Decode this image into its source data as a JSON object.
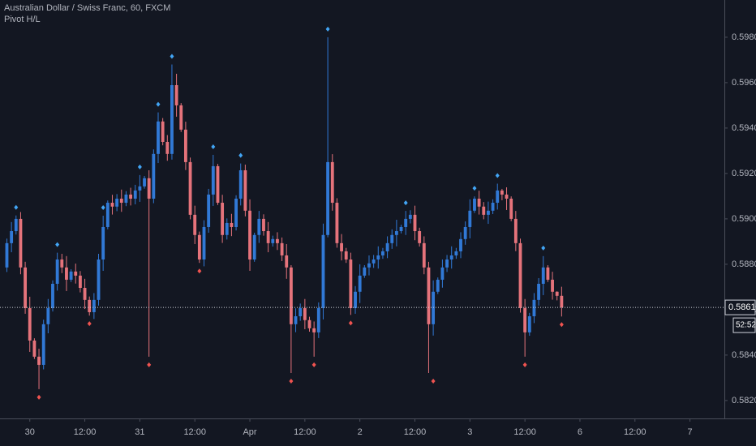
{
  "chart_data": {
    "type": "candlestick",
    "title": "Australian Dollar / Swiss Franc, 60, FXCM",
    "subtitle": "Pivot H/L",
    "categories": [
      null,
      null,
      null,
      null,
      null,
      null,
      "30",
      null,
      null,
      null,
      null,
      null,
      null,
      null,
      null,
      null,
      null,
      null,
      "12:00",
      null,
      null,
      null,
      null,
      null,
      null,
      null,
      null,
      null,
      null,
      null,
      "31",
      null,
      null,
      null,
      null,
      null,
      null,
      null,
      null,
      null,
      null,
      null,
      "12:00",
      null,
      null,
      null,
      null,
      null,
      null,
      null,
      null,
      null,
      null,
      null,
      "Apr",
      null,
      null,
      null,
      null,
      null,
      null,
      null,
      null,
      null,
      null,
      null,
      "12:00",
      null,
      null,
      null,
      null,
      null,
      null,
      null,
      null,
      null,
      null,
      null,
      "2",
      null,
      null,
      null,
      null,
      null,
      null,
      null,
      null,
      null,
      null,
      null,
      "12:00",
      null,
      null,
      null,
      null,
      null,
      null,
      null,
      null,
      null,
      null,
      null,
      "3",
      null,
      null,
      null,
      null,
      null,
      null,
      null,
      null,
      null,
      null,
      null,
      "12:00",
      null,
      null,
      null,
      null,
      null,
      null,
      null,
      null,
      null,
      null,
      null,
      "6",
      null,
      null,
      null,
      null,
      null,
      null,
      null,
      null,
      null,
      null,
      null,
      "12:00",
      null,
      null,
      null,
      null,
      null,
      null,
      null,
      null,
      null,
      null,
      null,
      "7",
      null,
      null,
      null,
      null,
      null,
      null,
      null
    ],
    "open": [
      null,
      0.58786,
      0.58893,
      0.58946,
      0.59,
      0.58786,
      0.58607,
      0.58464,
      0.58393,
      0.58357,
      0.58536,
      0.58607,
      0.58714,
      0.58821,
      0.58786,
      0.58732,
      0.58768,
      0.5875,
      0.58696,
      0.58643,
      0.58589,
      0.58643,
      0.58821,
      0.58964,
      0.59071,
      0.59054,
      0.59089,
      0.59071,
      0.59107,
      0.59089,
      0.59125,
      0.59143,
      0.59179,
      0.59089,
      0.59286,
      0.59429,
      0.59339,
      0.59286,
      0.59589,
      0.595,
      0.59393,
      0.5925,
      0.59018,
      0.58929,
      0.58821,
      0.58964,
      0.59107,
      0.59232,
      0.59071,
      0.58929,
      0.58982,
      0.58964,
      0.59089,
      0.59214,
      0.59036,
      0.58821,
      0.58929,
      0.59,
      0.58946,
      0.58893,
      0.58911,
      0.58893,
      0.58839,
      0.58786,
      0.58536,
      0.58571,
      0.58607,
      0.58554,
      0.58518,
      0.585,
      0.58607,
      0.58929,
      0.5925,
      0.59071,
      0.58893,
      0.58857,
      0.58821,
      0.58607,
      0.58679,
      0.5875,
      0.58786,
      0.58804,
      0.58821,
      0.58839,
      0.58857,
      0.58893,
      0.58929,
      0.58946,
      0.58964,
      0.59,
      0.59018,
      0.58946,
      0.58893,
      0.58786,
      0.58536,
      0.58679,
      0.58732,
      0.58786,
      0.58821,
      0.58839,
      0.58857,
      0.58911,
      0.58964,
      0.59036,
      0.59089,
      0.59054,
      0.59018,
      0.59036,
      0.59071,
      0.59125,
      0.59107,
      0.59089,
      0.59,
      0.58893,
      0.58607,
      0.585,
      0.58571,
      0.58643,
      0.58714,
      0.58786,
      0.58732,
      0.58679,
      0.58661,
      null,
      null,
      null,
      null,
      null,
      null,
      null,
      null,
      null,
      null,
      null,
      null,
      null,
      null,
      null,
      null,
      null,
      null,
      null,
      null,
      null,
      null,
      null,
      null,
      null,
      null,
      null,
      null,
      null,
      null,
      null,
      null,
      null,
      null,
      null
    ],
    "high": [
      null,
      0.58913,
      0.58986,
      0.59015,
      0.5903,
      0.58811,
      0.58657,
      0.58474,
      0.58428,
      0.58556,
      0.58647,
      0.58729,
      0.58851,
      0.58846,
      0.58836,
      0.58778,
      0.58803,
      0.5877,
      0.58736,
      0.58658,
      0.58673,
      0.58846,
      0.59014,
      0.59081,
      0.59106,
      0.59109,
      0.59129,
      0.59122,
      0.59137,
      0.5915,
      0.59193,
      0.59189,
      0.59214,
      0.59306,
      0.59469,
      0.59444,
      0.59369,
      0.5968,
      0.59639,
      0.5951,
      0.59428,
      0.5927,
      0.59058,
      0.58944,
      0.58994,
      0.59132,
      0.59282,
      0.59242,
      0.59106,
      0.59002,
      0.59022,
      0.59104,
      0.59244,
      0.59239,
      0.59086,
      0.58939,
      0.59035,
      0.5902,
      0.58986,
      0.58926,
      0.58941,
      0.58918,
      0.58889,
      0.58796,
      0.58606,
      0.58627,
      0.58647,
      0.58569,
      0.58548,
      0.58632,
      0.58979,
      0.598,
      0.59285,
      0.59091,
      0.58933,
      0.58872,
      0.58851,
      0.58704,
      0.588,
      0.58796,
      0.58839,
      0.58841,
      0.58879,
      0.58872,
      0.58923,
      0.58954,
      0.58996,
      0.58974,
      0.59035,
      0.59038,
      0.59058,
      0.58961,
      0.58923,
      0.58811,
      0.58729,
      0.58742,
      0.58821,
      0.58841,
      0.58879,
      0.58872,
      0.58941,
      0.58989,
      0.59086,
      0.59099,
      0.59124,
      0.59074,
      0.59076,
      0.59086,
      0.59155,
      0.59132,
      0.59139,
      0.59099,
      0.59035,
      0.58913,
      0.58647,
      0.58586,
      0.58673,
      0.58739,
      0.58836,
      0.58796,
      0.58767,
      0.58681,
      0.58701,
      null,
      null,
      null,
      null,
      null,
      null,
      null,
      null,
      null,
      null,
      null,
      null,
      null,
      null,
      null,
      null,
      null,
      null,
      null,
      null,
      null,
      null,
      null,
      null,
      null,
      null,
      null,
      null,
      null,
      null,
      null,
      null,
      null,
      null,
      null
    ],
    "low": [
      null,
      0.58766,
      0.58853,
      0.58931,
      0.58756,
      0.58582,
      0.58414,
      0.58383,
      0.5825,
      0.58337,
      0.58496,
      0.58592,
      0.58684,
      0.58761,
      0.58682,
      0.58722,
      0.58715,
      0.58676,
      0.58603,
      0.58574,
      0.58559,
      0.58618,
      0.58771,
      0.58954,
      0.59019,
      0.59034,
      0.59031,
      0.59056,
      0.59059,
      0.59064,
      0.59075,
      0.59133,
      0.58393,
      0.59069,
      0.59246,
      0.59324,
      0.59256,
      0.59261,
      0.5945,
      0.59383,
      0.59215,
      0.58998,
      0.58889,
      0.58806,
      0.58791,
      0.58939,
      0.59057,
      0.59061,
      0.58894,
      0.58909,
      0.58924,
      0.58949,
      0.59059,
      0.59011,
      0.58771,
      0.58811,
      0.58894,
      0.58926,
      0.58853,
      0.58878,
      0.58863,
      0.58814,
      0.58736,
      0.58321,
      0.58501,
      0.58551,
      0.58514,
      0.58503,
      0.58393,
      0.58475,
      0.58557,
      0.58919,
      0.59036,
      0.58873,
      0.58817,
      0.58806,
      0.58577,
      0.58582,
      0.58629,
      0.5874,
      0.58751,
      0.58784,
      0.58781,
      0.58824,
      0.58827,
      0.58868,
      0.58879,
      0.58936,
      0.58929,
      0.5898,
      0.58906,
      0.58878,
      0.58756,
      0.58321,
      0.58486,
      0.58669,
      0.58697,
      0.58766,
      0.58781,
      0.58824,
      0.58827,
      0.58886,
      0.58914,
      0.59026,
      0.59019,
      0.58998,
      0.58978,
      0.59021,
      0.59041,
      0.59082,
      0.59039,
      0.5899,
      0.58858,
      0.58587,
      0.58393,
      0.58485,
      0.58541,
      0.58618,
      0.58664,
      0.58722,
      0.58644,
      0.58641,
      0.5857,
      null,
      null,
      null,
      null,
      null,
      null,
      null,
      null,
      null,
      null,
      null,
      null,
      null,
      null,
      null,
      null,
      null,
      null,
      null,
      null,
      null,
      null,
      null,
      null,
      null,
      null,
      null,
      null,
      null,
      null,
      null,
      null,
      null,
      null,
      null
    ],
    "close": [
      null,
      0.58893,
      0.58946,
      0.59,
      0.58786,
      0.58607,
      0.58464,
      0.58393,
      0.58357,
      0.58536,
      0.58607,
      0.58714,
      0.58821,
      0.58786,
      0.58732,
      0.58768,
      0.5875,
      0.58696,
      0.58643,
      0.58589,
      0.58643,
      0.58821,
      0.58964,
      0.59071,
      0.59054,
      0.59089,
      0.59071,
      0.59107,
      0.59089,
      0.59125,
      0.59143,
      0.59179,
      0.59089,
      0.59286,
      0.59429,
      0.59339,
      0.59286,
      0.59589,
      0.595,
      0.59393,
      0.5925,
      0.59018,
      0.58929,
      0.58821,
      0.58964,
      0.59107,
      0.59232,
      0.59071,
      0.58929,
      0.58982,
      0.58964,
      0.59089,
      0.59214,
      0.59036,
      0.58821,
      0.58929,
      0.59,
      0.58946,
      0.58893,
      0.58911,
      0.58893,
      0.58839,
      0.58786,
      0.58536,
      0.58571,
      0.58607,
      0.58554,
      0.58518,
      0.585,
      0.58607,
      0.58929,
      0.5925,
      0.59071,
      0.58893,
      0.58857,
      0.58821,
      0.58607,
      0.58679,
      0.5875,
      0.58786,
      0.58804,
      0.58821,
      0.58839,
      0.58857,
      0.58893,
      0.58929,
      0.58946,
      0.58964,
      0.59,
      0.59018,
      0.58946,
      0.58893,
      0.58786,
      0.58536,
      0.58679,
      0.58732,
      0.58786,
      0.58821,
      0.58839,
      0.58857,
      0.58911,
      0.58964,
      0.59036,
      0.59089,
      0.59054,
      0.59018,
      0.59036,
      0.59071,
      0.59125,
      0.59107,
      0.59089,
      0.59,
      0.58893,
      0.58607,
      0.585,
      0.58571,
      0.58643,
      0.58714,
      0.58786,
      0.58732,
      0.58679,
      0.58661,
      0.5861,
      null,
      null,
      null,
      null,
      null,
      null,
      null,
      null,
      null,
      null,
      null,
      null,
      null,
      null,
      null,
      null,
      null,
      null,
      null,
      null,
      null,
      null,
      null,
      null,
      null,
      null,
      null,
      null,
      null,
      null,
      null,
      null,
      null,
      null,
      null
    ],
    "pivot_high": [
      null,
      null,
      null,
      0.59015,
      null,
      null,
      null,
      null,
      null,
      null,
      null,
      null,
      0.58851,
      null,
      null,
      null,
      null,
      null,
      null,
      null,
      null,
      null,
      0.59014,
      null,
      null,
      null,
      null,
      null,
      null,
      null,
      0.59193,
      null,
      null,
      null,
      0.59469,
      null,
      null,
      0.5968,
      null,
      null,
      null,
      null,
      null,
      null,
      null,
      null,
      0.59282,
      null,
      null,
      null,
      null,
      null,
      0.59244,
      null,
      null,
      null,
      null,
      null,
      null,
      null,
      null,
      null,
      null,
      null,
      null,
      null,
      null,
      null,
      null,
      null,
      null,
      0.598,
      null,
      null,
      null,
      null,
      null,
      null,
      null,
      null,
      null,
      null,
      null,
      null,
      null,
      null,
      null,
      null,
      0.59035,
      null,
      null,
      null,
      null,
      null,
      null,
      null,
      null,
      null,
      null,
      null,
      null,
      null,
      null,
      0.59099,
      null,
      null,
      null,
      null,
      0.59155,
      null,
      null,
      null,
      null,
      null,
      null,
      null,
      null,
      null,
      0.58836,
      null,
      null,
      null,
      null,
      null,
      null,
      null,
      null,
      null,
      null,
      null,
      null,
      null,
      null,
      null,
      null,
      null,
      null,
      null,
      null,
      null,
      null,
      null,
      null,
      null,
      null,
      null,
      null,
      null,
      null,
      null,
      null,
      null,
      null,
      null,
      null,
      null
    ],
    "pivot_low": [
      null,
      null,
      null,
      null,
      null,
      null,
      null,
      null,
      0.5825,
      null,
      null,
      null,
      null,
      null,
      null,
      null,
      null,
      null,
      null,
      0.58574,
      null,
      null,
      null,
      null,
      null,
      null,
      null,
      null,
      null,
      null,
      null,
      null,
      0.58393,
      null,
      null,
      null,
      null,
      null,
      null,
      null,
      null,
      null,
      null,
      0.58806,
      null,
      null,
      null,
      null,
      null,
      null,
      null,
      null,
      null,
      null,
      null,
      null,
      null,
      null,
      null,
      null,
      null,
      null,
      null,
      0.58321,
      null,
      null,
      null,
      null,
      0.58393,
      null,
      null,
      null,
      null,
      null,
      null,
      null,
      0.58577,
      null,
      null,
      null,
      null,
      null,
      null,
      null,
      null,
      null,
      null,
      null,
      null,
      null,
      null,
      null,
      null,
      null,
      0.58321,
      null,
      null,
      null,
      null,
      null,
      null,
      null,
      null,
      null,
      null,
      null,
      null,
      null,
      null,
      null,
      null,
      null,
      null,
      null,
      0.58393,
      null,
      null,
      null,
      null,
      null,
      null,
      null,
      0.5857,
      null,
      null,
      null,
      null,
      null,
      null,
      null,
      null,
      null,
      null,
      null,
      null,
      null,
      null,
      null,
      null,
      null,
      null,
      null,
      null,
      null,
      null,
      null,
      null,
      null,
      null,
      null,
      null,
      null,
      null,
      null,
      null,
      null,
      null
    ],
    "up_color": "#3179d6",
    "down_color": "#e5737b",
    "pivot_high_color": "#42a5f5",
    "pivot_low_color": "#ef5350",
    "ylim": [
      0.58121,
      0.59964
    ],
    "yticks": [
      {
        "value": 0.582,
        "label": "0.58200"
      },
      {
        "value": 0.584,
        "label": "0.58400"
      },
      {
        "value": 0.586,
        "label": "0.58600"
      },
      {
        "value": 0.588,
        "label": "0.58800"
      },
      {
        "value": 0.59,
        "label": "0.59000"
      },
      {
        "value": 0.592,
        "label": "0.59200"
      },
      {
        "value": 0.594,
        "label": "0.59400"
      },
      {
        "value": 0.596,
        "label": "0.59600"
      },
      {
        "value": 0.598,
        "label": "0.59800"
      }
    ],
    "last_price": {
      "value": 0.5861,
      "label": "0.58610"
    },
    "countdown": "52:52",
    "grid": false
  }
}
